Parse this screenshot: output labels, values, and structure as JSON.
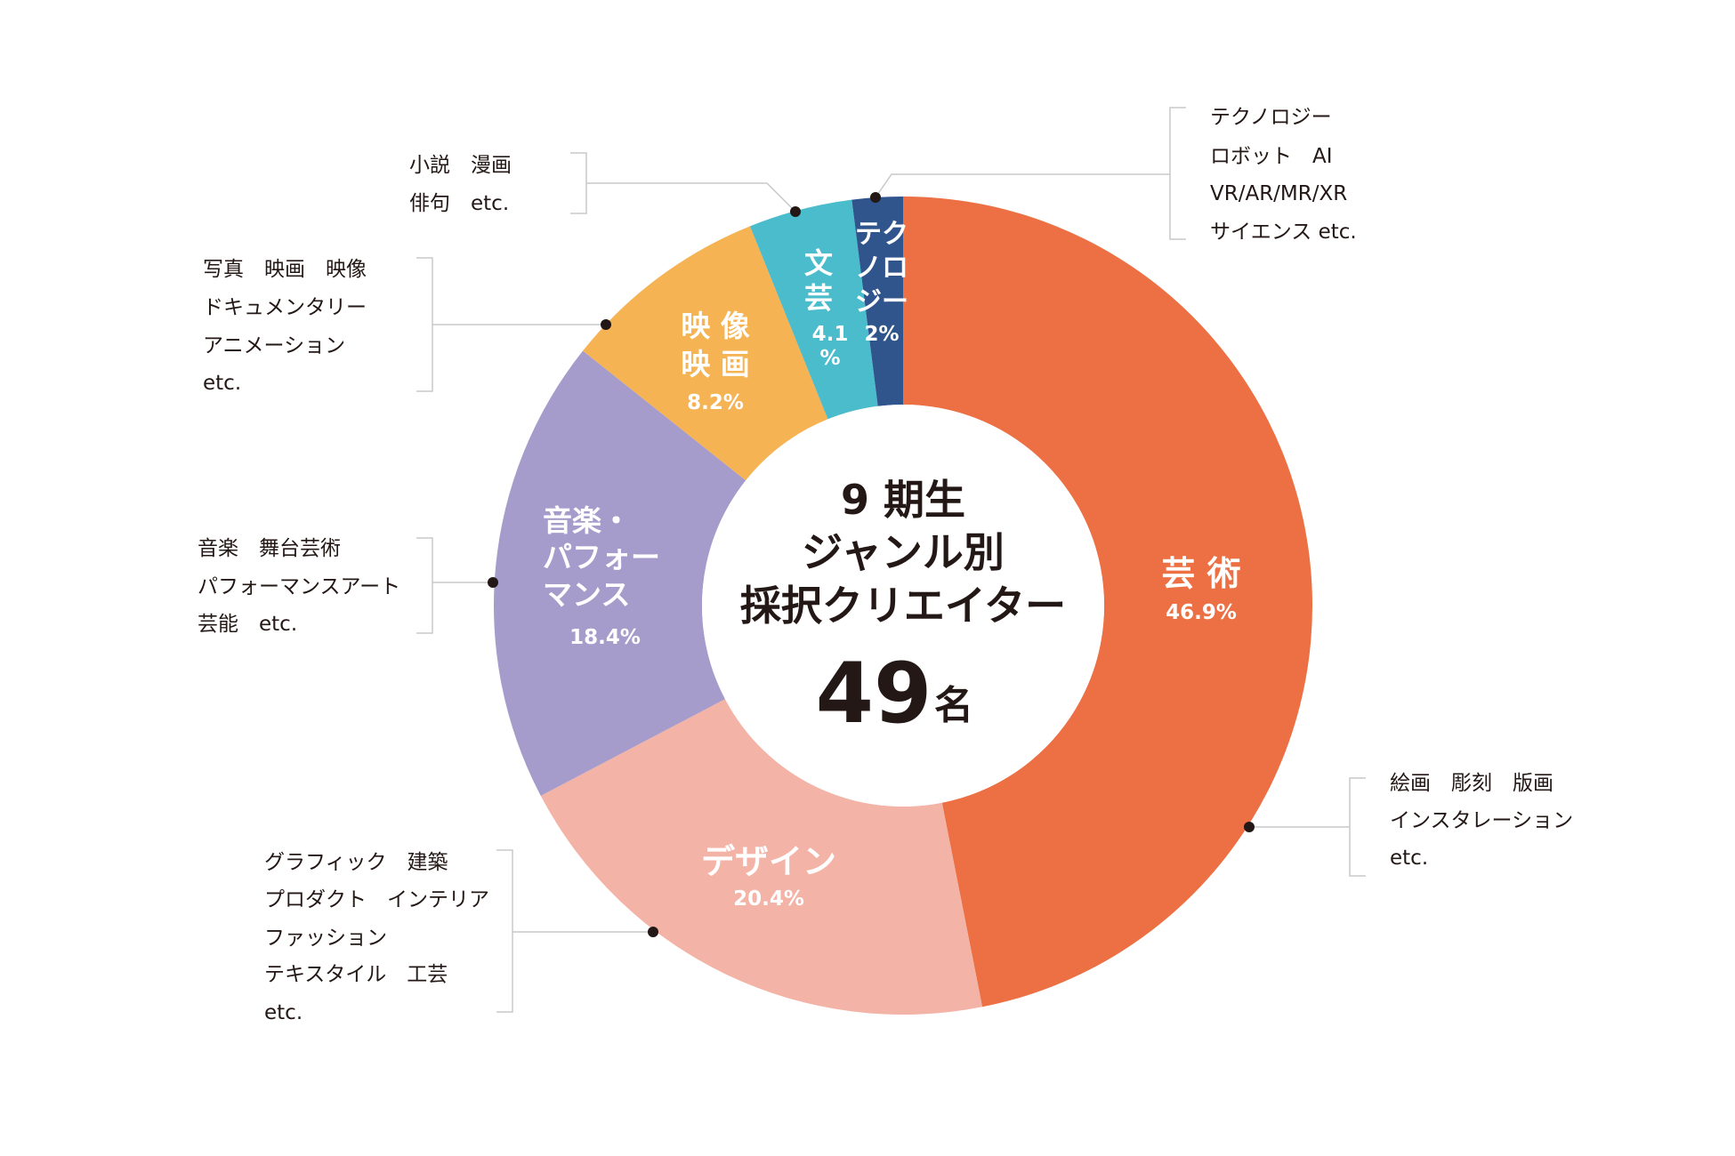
{
  "chart_data": {
    "type": "pie",
    "variant": "donut",
    "title": [
      "9 期生",
      "ジャンル別",
      "採択クリエイター"
    ],
    "total": {
      "value": "49",
      "unit": "名"
    },
    "start": "top",
    "direction": "clockwise",
    "segments": [
      {
        "name": "芸術",
        "label_lines": [
          "芸 術"
        ],
        "value": 46.9,
        "pct_text": "46.9%",
        "color": "#EC7043",
        "note": [
          "絵画　彫刻　版画",
          "インスタレーション",
          "etc."
        ]
      },
      {
        "name": "デザイン",
        "label_lines": [
          "デザイン"
        ],
        "value": 20.4,
        "pct_text": "20.4%",
        "color": "#F3B3A6",
        "note": [
          "グラフィック　建築",
          "プロダクト　インテリア",
          "ファッション",
          "テキスタイル　工芸",
          "etc."
        ]
      },
      {
        "name": "音楽・パフォーマンス",
        "label_lines": [
          "音楽・",
          "パフォー",
          "マンス"
        ],
        "value": 18.4,
        "pct_text": "18.4%",
        "color": "#A59CCB",
        "note": [
          "音楽　舞台芸術",
          "パフォーマンスアート",
          "芸能　etc."
        ]
      },
      {
        "name": "映像映画",
        "label_lines": [
          "映 像",
          "映 画"
        ],
        "value": 8.2,
        "pct_text": "8.2%",
        "color": "#F5B353",
        "note": [
          "写真　映画　映像",
          "ドキュメンタリー",
          "アニメーション",
          "etc."
        ]
      },
      {
        "name": "文芸",
        "label_lines": [
          "文",
          "芸"
        ],
        "value": 4.1,
        "pct_text": "4.1",
        "pct_text2": "%",
        "color": "#4BBCCB",
        "note": [
          "小説　漫画",
          "俳句　etc."
        ]
      },
      {
        "name": "テクノロジー",
        "label_lines": [
          "テク",
          "ノロ",
          "ジー"
        ],
        "value": 2,
        "pct_text": "2%",
        "color": "#30548C",
        "note": [
          "テクノロジー",
          "ロボット　AI",
          "VR/AR/MR/XR",
          "サイエンス etc."
        ]
      }
    ]
  }
}
